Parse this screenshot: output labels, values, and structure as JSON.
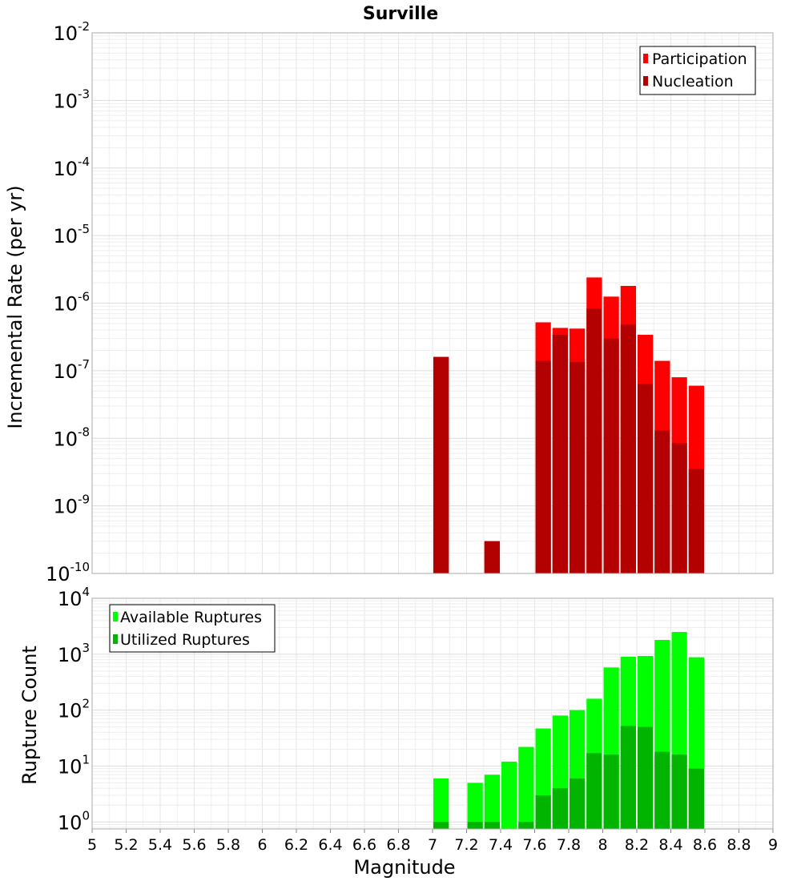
{
  "chart_data": [
    {
      "type": "bar",
      "title": "Surville",
      "xlabel": "",
      "ylabel": "Incremental Rate (per yr)",
      "yscale": "log",
      "ylim": [
        1e-10,
        0.01
      ],
      "xlim": [
        5,
        9
      ],
      "legend_position": "top-right",
      "legend": [
        "Participation",
        "Nucleation"
      ],
      "bin_width": 0.1,
      "x": [
        7.05,
        7.35,
        7.65,
        7.75,
        7.85,
        7.95,
        8.05,
        8.15,
        8.25,
        8.35,
        8.45,
        8.55
      ],
      "series": [
        {
          "name": "Participation",
          "color": "#ff0000",
          "values": [
            1.6e-07,
            3e-10,
            5.2e-07,
            4.3e-07,
            4.2e-07,
            2.4e-06,
            1.25e-06,
            1.8e-06,
            3.4e-07,
            1.4e-07,
            8e-08,
            6e-08
          ]
        },
        {
          "name": "Nucleation",
          "color": "#b30000",
          "values": [
            1.6e-07,
            3e-10,
            1.4e-07,
            3.4e-07,
            1.35e-07,
            8.3e-07,
            3e-07,
            4.8e-07,
            6.4e-08,
            1.3e-08,
            8.5e-09,
            3.5e-09
          ]
        }
      ],
      "grid": true
    },
    {
      "type": "bar",
      "xlabel": "Magnitude",
      "ylabel": "Rupture Count",
      "yscale": "log",
      "ylim": [
        0.75,
        10000
      ],
      "xlim": [
        5,
        9
      ],
      "legend_position": "top-left",
      "legend": [
        "Available Ruptures",
        "Utilized Ruptures"
      ],
      "bin_width": 0.1,
      "x": [
        7.05,
        7.25,
        7.35,
        7.45,
        7.55,
        7.65,
        7.75,
        7.85,
        7.95,
        8.05,
        8.15,
        8.25,
        8.35,
        8.45,
        8.55
      ],
      "series": [
        {
          "name": "Available Ruptures",
          "color": "#00ff00",
          "values": [
            6,
            5,
            7,
            12,
            22,
            47,
            80,
            100,
            160,
            580,
            900,
            930,
            1800,
            2500,
            880
          ]
        },
        {
          "name": "Utilized Ruptures",
          "color": "#00b400",
          "values": [
            1,
            1,
            1,
            0,
            1,
            3,
            4,
            6,
            17,
            16,
            52,
            50,
            18,
            16,
            9
          ]
        }
      ],
      "xticks": [
        "5",
        "5.2",
        "5.4",
        "5.6",
        "5.8",
        "6",
        "6.2",
        "6.4",
        "6.6",
        "6.8",
        "7",
        "7.2",
        "7.4",
        "7.6",
        "7.8",
        "8",
        "8.2",
        "8.4",
        "8.6",
        "8.8",
        "9"
      ],
      "grid": true
    }
  ],
  "ytick_base": "10"
}
